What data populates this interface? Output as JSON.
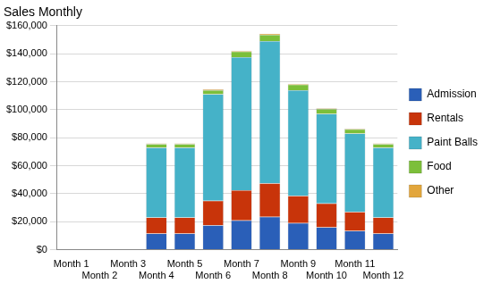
{
  "chart_data": {
    "type": "bar",
    "title": "Sales Monthly",
    "stacked": true,
    "grid": true,
    "legend": "right",
    "categories": [
      "Month 1",
      "Month 2",
      "Month 3",
      "Month 4",
      "Month 5",
      "Month 6",
      "Month 7",
      "Month 8",
      "Month 9",
      "Month 10",
      "Month 11",
      "Month 12"
    ],
    "series": [
      {
        "name": "Admission",
        "color": "#2a5fb8",
        "values": [
          0,
          0,
          0,
          11500,
          11500,
          17500,
          21000,
          23500,
          19000,
          16000,
          13500,
          11500
        ]
      },
      {
        "name": "Rentals",
        "color": "#c8340a",
        "values": [
          0,
          0,
          0,
          11500,
          11500,
          17500,
          21500,
          24000,
          19500,
          17000,
          13500,
          11500
        ]
      },
      {
        "name": "Paint Balls",
        "color": "#45b2c8",
        "values": [
          0,
          0,
          0,
          50000,
          50000,
          76000,
          95000,
          101500,
          75500,
          64000,
          56000,
          50000
        ]
      },
      {
        "name": "Food",
        "color": "#7cbf3a",
        "values": [
          0,
          0,
          0,
          2500,
          2500,
          3000,
          4000,
          4500,
          4000,
          3500,
          3000,
          2500
        ]
      },
      {
        "name": "Other",
        "color": "#e2a63c",
        "values": [
          0,
          0,
          0,
          500,
          500,
          600,
          700,
          800,
          600,
          500,
          500,
          500
        ]
      }
    ],
    "ylim": [
      0,
      160000
    ],
    "yticks": [
      {
        "value": 0,
        "label": "$0"
      },
      {
        "value": 20000,
        "label": "$20,000"
      },
      {
        "value": 40000,
        "label": "$40,000"
      },
      {
        "value": 60000,
        "label": "$60,000"
      },
      {
        "value": 80000,
        "label": "$80,000"
      },
      {
        "value": 100000,
        "label": "$100,000"
      },
      {
        "value": 120000,
        "label": "$120,000"
      },
      {
        "value": 140000,
        "label": "$140,000"
      },
      {
        "value": 160000,
        "label": "$160,000"
      }
    ]
  }
}
